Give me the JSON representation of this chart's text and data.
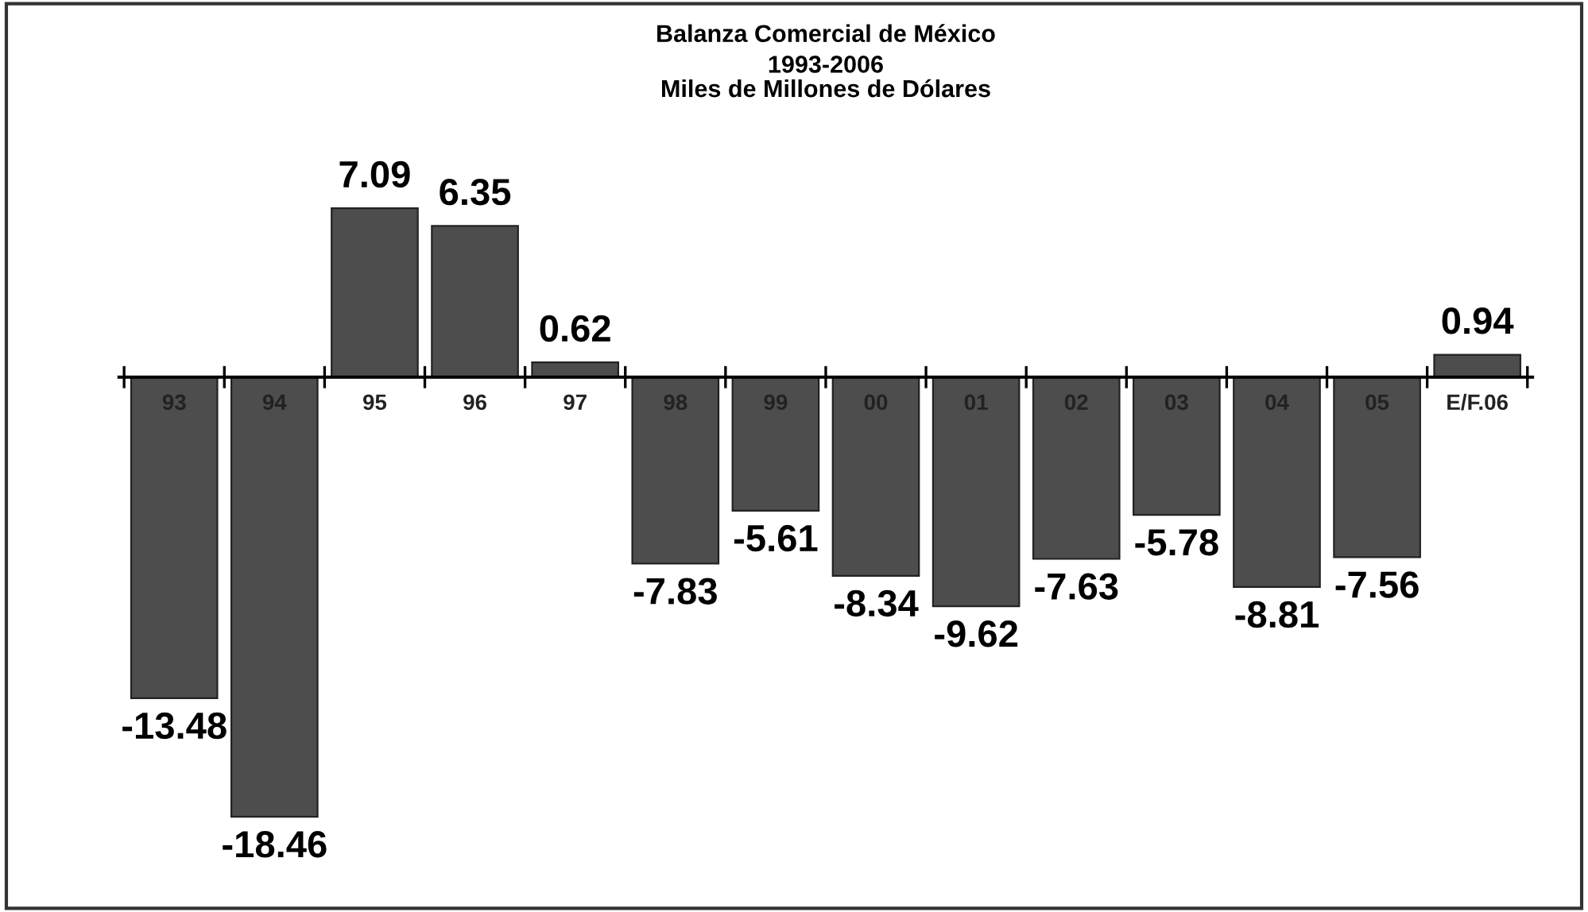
{
  "chart_data": {
    "type": "bar",
    "title": "Balanza Comercial de México",
    "subtitle": "1993-2006\nMiles de Millones de Dólares",
    "categories": [
      "93",
      "94",
      "95",
      "96",
      "97",
      "98",
      "99",
      "00",
      "01",
      "02",
      "03",
      "04",
      "05",
      "E/F.06"
    ],
    "values": [
      -13.48,
      -18.46,
      7.09,
      6.35,
      0.62,
      -7.83,
      -5.61,
      -8.34,
      -9.62,
      -7.63,
      -5.78,
      -8.81,
      -7.56,
      0.94
    ],
    "color": "#4d4d4d",
    "data_labels": true,
    "grid": false,
    "legend": false
  }
}
